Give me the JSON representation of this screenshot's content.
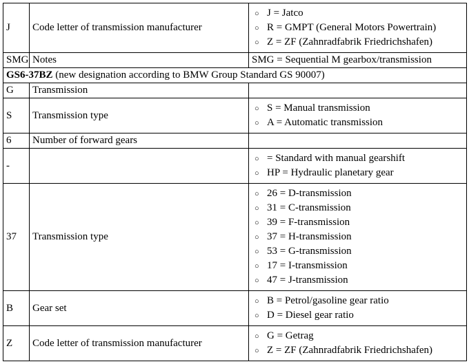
{
  "rows": [
    {
      "code": "J",
      "desc": "Code letter of transmission manufacturer",
      "type": "list",
      "items": [
        "J = Jatco",
        "R = GMPT (General Motors Powertrain)",
        "Z = ZF (Zahnradfabrik Friedrichshafen)"
      ]
    },
    {
      "code": "SMG",
      "desc": "Notes",
      "type": "text",
      "detail": "SMG = Sequential M gearbox/transmission"
    },
    {
      "type": "header",
      "bold": "GS6-37BZ",
      "rest": " (new designation according to BMW Group Standard GS 90007)"
    },
    {
      "code": "G",
      "desc": "Transmission",
      "type": "text",
      "detail": ""
    },
    {
      "code": "S",
      "desc": "Transmission type",
      "type": "list",
      "items": [
        "S = Manual transmission",
        "A = Automatic transmission"
      ]
    },
    {
      "code": "6",
      "desc": "Number of forward gears",
      "type": "text",
      "detail": ""
    },
    {
      "code": "-",
      "desc": "",
      "type": "list",
      "items": [
        "= Standard with manual gearshift",
        "HP = Hydraulic planetary gear"
      ]
    },
    {
      "code": "37",
      "desc": "Transmission type",
      "type": "list",
      "items": [
        "26 = D-transmission",
        "31 = C-transmission",
        "39 = F-transmission",
        "37 = H-transmission",
        "53 = G-transmission",
        "17 = I-transmission",
        "47 = J-transmission"
      ]
    },
    {
      "code": "B",
      "desc": "Gear set",
      "type": "list",
      "items": [
        "B = Petrol/gasoline gear ratio",
        "D = Diesel gear ratio"
      ]
    },
    {
      "code": "Z",
      "desc": "Code letter of transmission manufacturer",
      "type": "list",
      "items": [
        "G = Getrag",
        "Z = ZF (Zahnradfabrik Friedrichshafen)"
      ]
    }
  ]
}
